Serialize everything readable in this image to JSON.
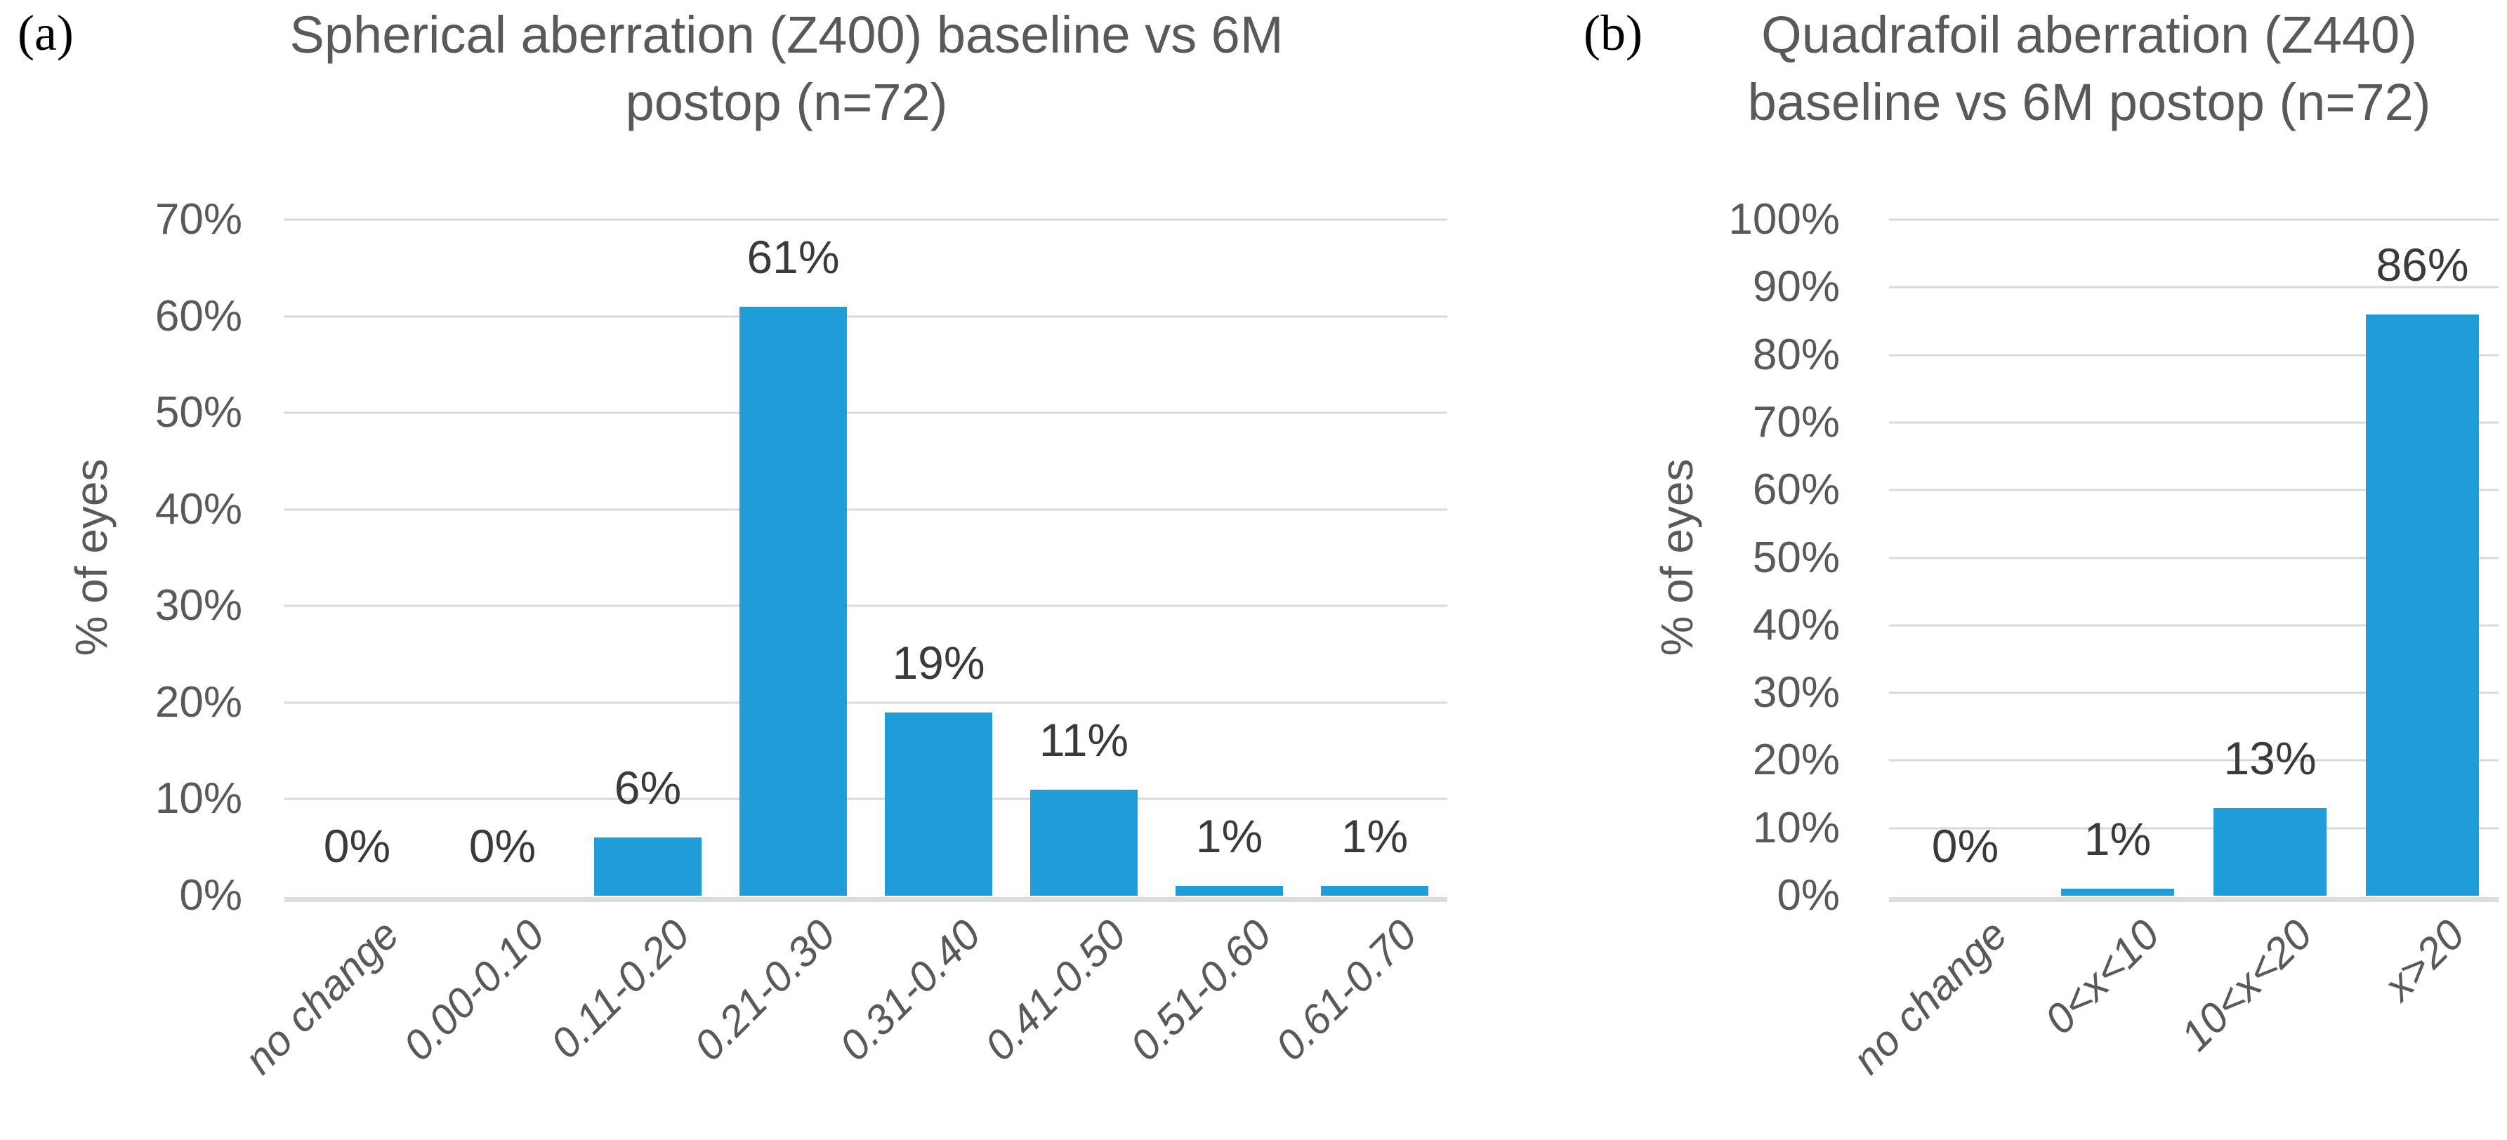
{
  "colors": {
    "bar": "#1e9dd8",
    "gridline": "#d9d9d9",
    "axis_line": "#dddddd",
    "text": "#595959",
    "data_label": "#3a3a3a",
    "panel_label": "#000000",
    "background": "#ffffff"
  },
  "chart_data": [
    {
      "type": "bar",
      "panel_label": "(a)",
      "title": "Spherical aberration (Z400) baseline vs 6M postop (n=72)",
      "xlabel": "",
      "ylabel": "% of eyes",
      "categories": [
        "no change",
        "0.00-0.10",
        "0.11-0.20",
        "0.21-0.30",
        "0.31-0.40",
        "0.41-0.50",
        "0.51-0.60",
        "0.61-0.70"
      ],
      "values": [
        0,
        0,
        6,
        61,
        19,
        11,
        1,
        1
      ],
      "value_labels": [
        "0%",
        "0%",
        "6%",
        "61%",
        "19%",
        "11%",
        "1%",
        "1%"
      ],
      "ylim": [
        0,
        70
      ],
      "ytick_values": [
        0,
        10,
        20,
        30,
        40,
        50,
        60,
        70
      ],
      "ytick_labels": [
        "0%",
        "10%",
        "20%",
        "30%",
        "40%",
        "50%",
        "60%",
        "70%"
      ],
      "grid": true,
      "legend_position": "none",
      "bar_color": "#1e9dd8"
    },
    {
      "type": "bar",
      "panel_label": "(b)",
      "title": "Quadrafoil aberration (Z440) baseline vs 6M postop (n=72)",
      "xlabel": "",
      "ylabel": "% of eyes",
      "categories": [
        "no change",
        "0<x<10",
        "10<x<20",
        "x>20"
      ],
      "values": [
        0,
        1,
        13,
        86
      ],
      "value_labels": [
        "0%",
        "1%",
        "13%",
        "86%"
      ],
      "ylim": [
        0,
        100
      ],
      "ytick_values": [
        0,
        10,
        20,
        30,
        40,
        50,
        60,
        70,
        80,
        90,
        100
      ],
      "ytick_labels": [
        "0%",
        "10%",
        "20%",
        "30%",
        "40%",
        "50%",
        "60%",
        "70%",
        "80%",
        "90%",
        "100%"
      ],
      "grid": true,
      "legend_position": "none",
      "bar_color": "#1e9dd8"
    }
  ]
}
